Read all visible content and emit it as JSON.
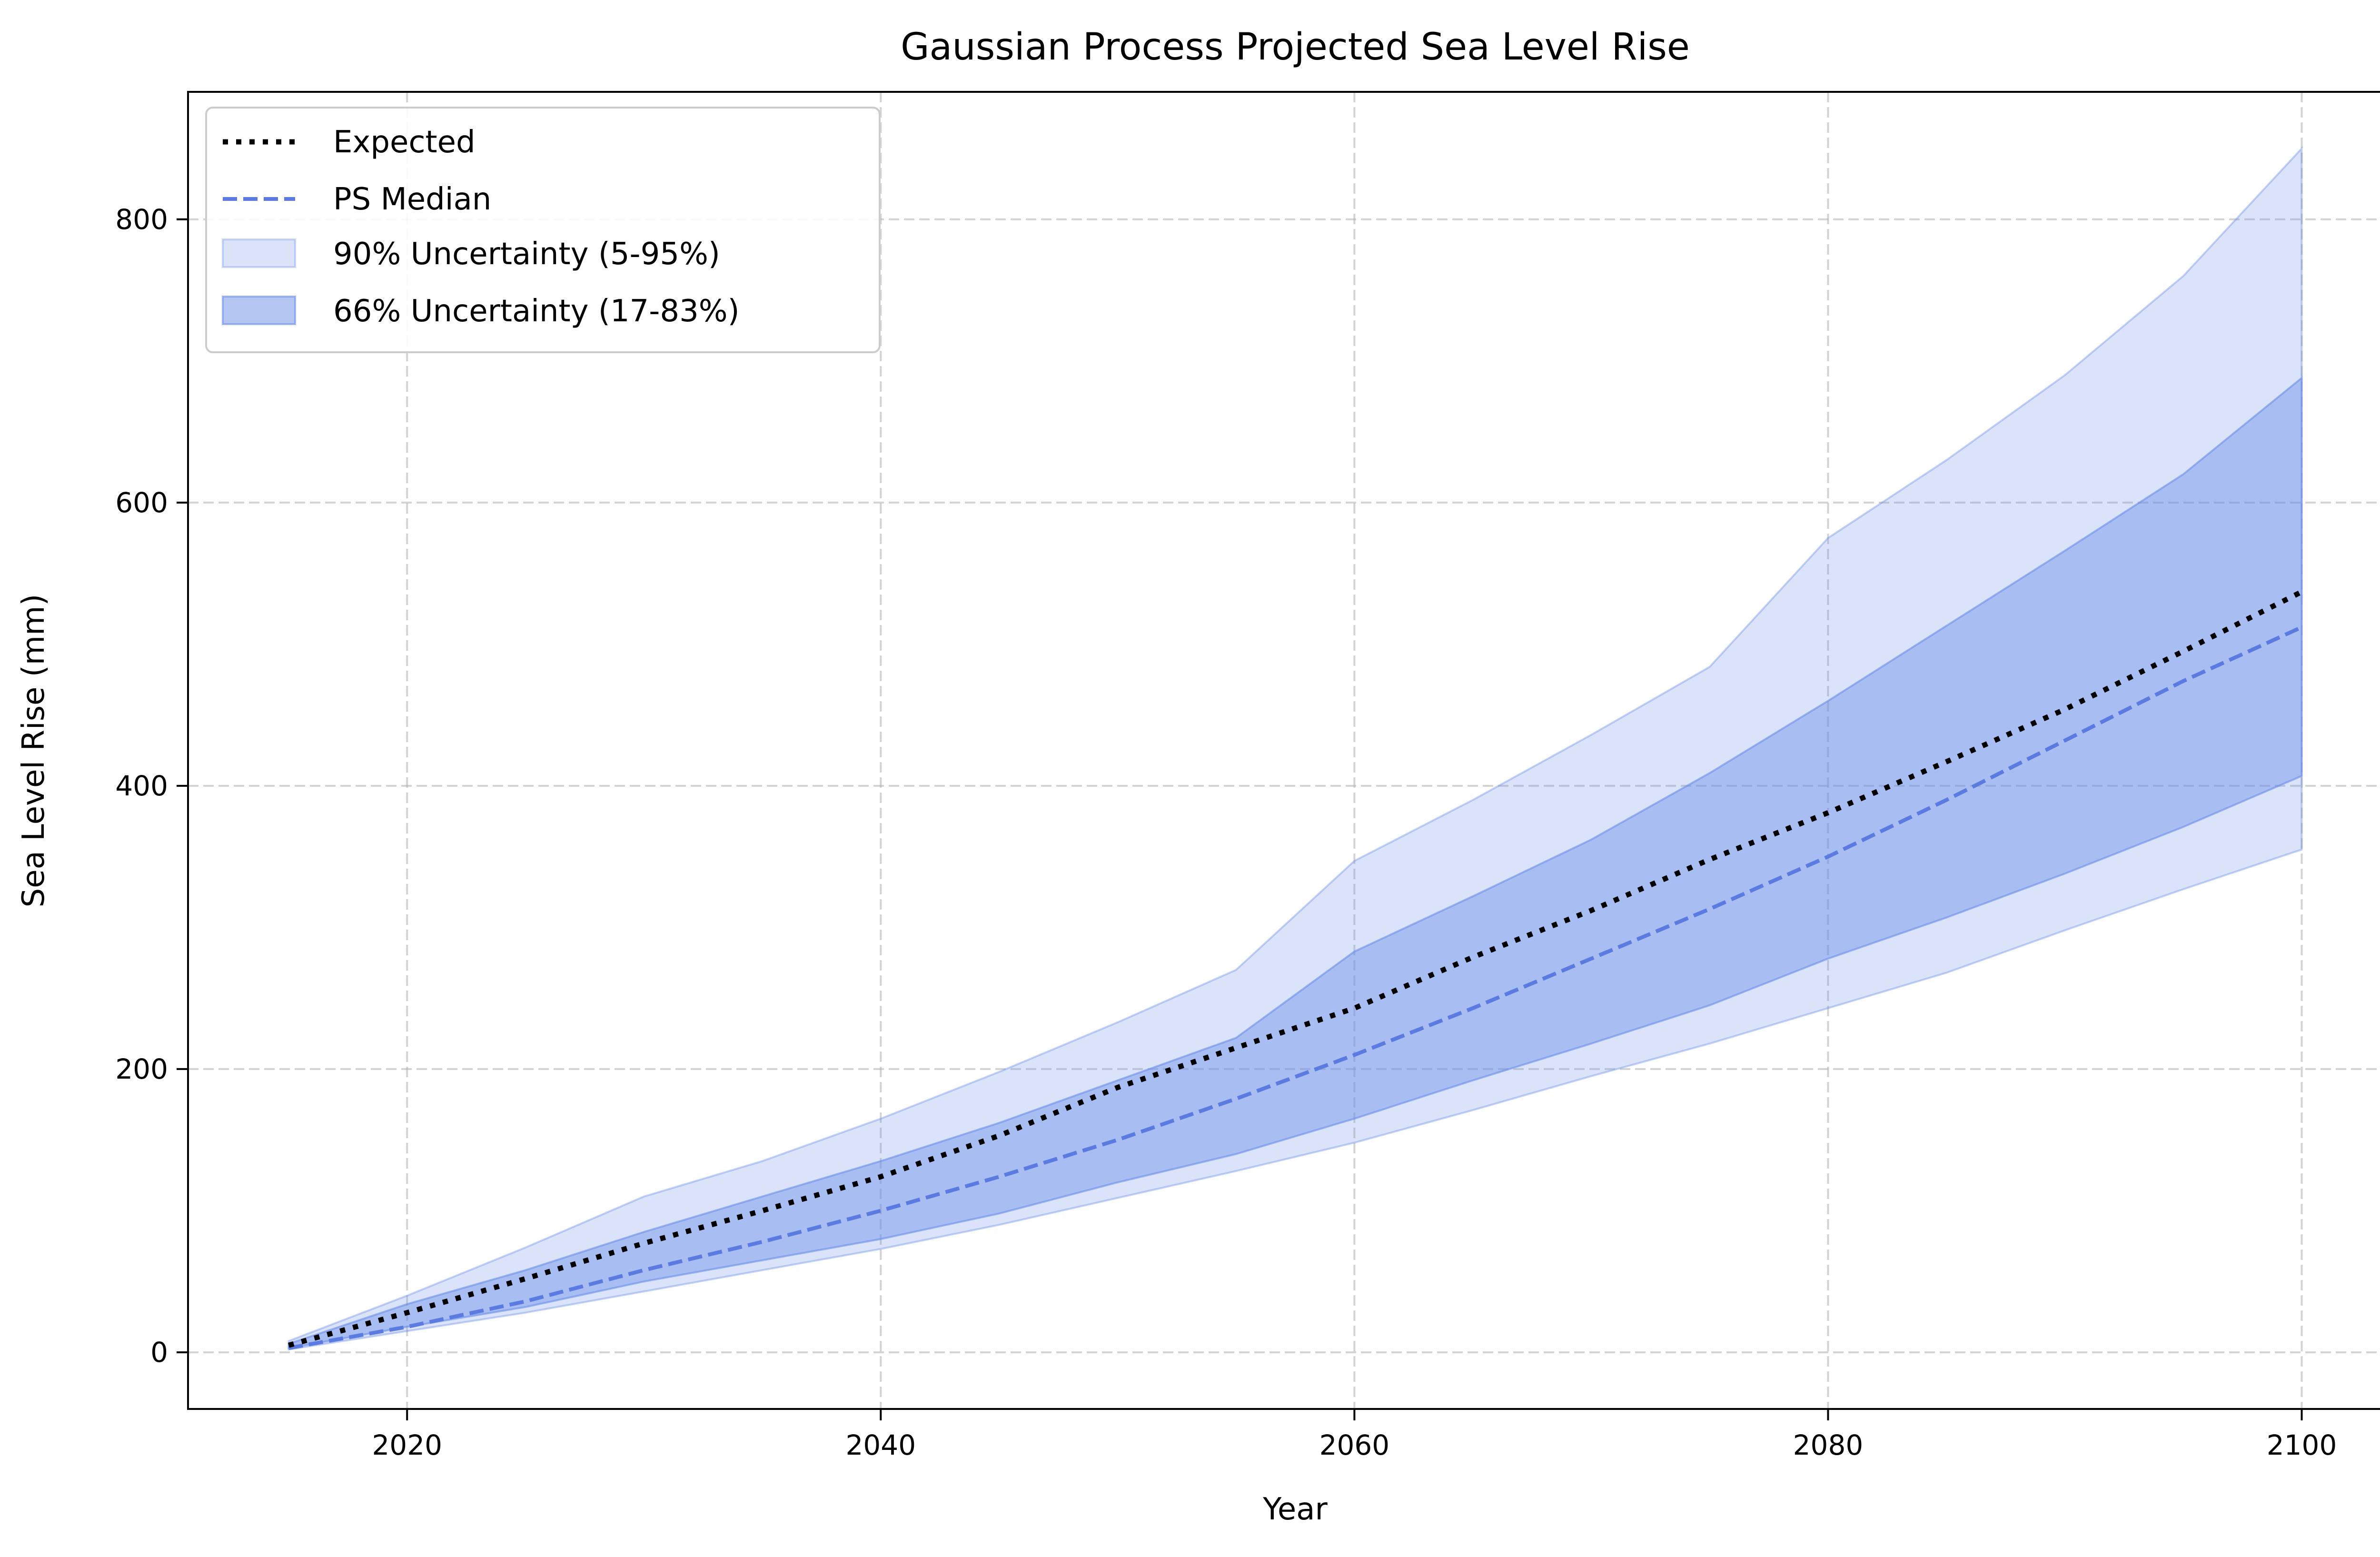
{
  "chart_data": {
    "type": "line",
    "title": "Gaussian Process Projected Sea Level Rise",
    "xlabel": "Year",
    "ylabel": "Sea Level Rise (mm)",
    "xlim": [
      2010.75,
      2104.25
    ],
    "ylim": [
      -40,
      890
    ],
    "xticks": [
      2020,
      2040,
      2060,
      2080,
      2100
    ],
    "yticks": [
      0,
      200,
      400,
      600,
      800
    ],
    "grid": true,
    "legend_position": "top-left",
    "x": [
      2015,
      2020,
      2025,
      2030,
      2035,
      2040,
      2045,
      2050,
      2055,
      2060,
      2065,
      2070,
      2075,
      2080,
      2085,
      2090,
      2095,
      2100
    ],
    "series": [
      {
        "name": "Expected",
        "style": "dotted",
        "color": "#000000",
        "values": [
          5,
          28,
          52,
          77,
          100,
          124,
          153,
          187,
          215,
          243,
          279,
          312,
          348,
          381,
          417,
          454,
          495,
          537
        ]
      },
      {
        "name": "PS Median",
        "style": "dashed",
        "color": "#5b7be0",
        "values": [
          3,
          18,
          36,
          58,
          78,
          100,
          124,
          150,
          179,
          210,
          243,
          278,
          313,
          350,
          390,
          432,
          474,
          512
        ]
      }
    ],
    "bands": [
      {
        "name": "90% Uncertainty (5-95%)",
        "color": "#6b8ee8",
        "opacity": 0.25,
        "lower": [
          2,
          15,
          28,
          43,
          58,
          73,
          90,
          109,
          128,
          148,
          171,
          195,
          218,
          243,
          268,
          298,
          327,
          355
        ],
        "upper": [
          8,
          40,
          74,
          110,
          135,
          165,
          198,
          233,
          270,
          347,
          390,
          436,
          484,
          575,
          630,
          690,
          760,
          850
        ]
      },
      {
        "name": "66% Uncertainty (17-83%)",
        "color": "#6b8ee8",
        "opacity": 0.45,
        "lower": [
          3,
          18,
          32,
          50,
          65,
          80,
          98,
          120,
          140,
          165,
          192,
          218,
          245,
          278,
          307,
          338,
          371,
          407
        ],
        "upper": [
          6,
          34,
          58,
          85,
          110,
          135,
          162,
          192,
          222,
          283,
          322,
          362,
          409,
          460,
          513,
          566,
          620,
          688
        ]
      }
    ]
  }
}
